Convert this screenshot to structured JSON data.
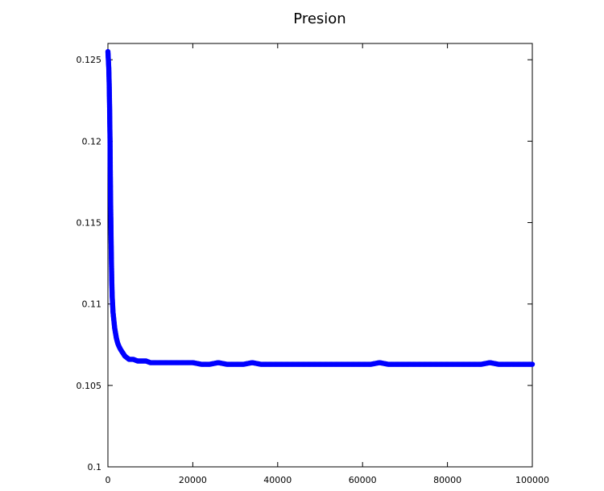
{
  "chart_data": {
    "type": "scatter",
    "title": "Presion",
    "xlabel": "",
    "ylabel": "",
    "xlim": [
      0,
      100000
    ],
    "ylim": [
      0.1,
      0.126
    ],
    "x_ticks": [
      0,
      20000,
      40000,
      60000,
      80000,
      100000
    ],
    "y_ticks": [
      0.1,
      0.105,
      0.11,
      0.115,
      0.12,
      0.125
    ],
    "x_tick_labels": [
      "0",
      "20000",
      "40000",
      "60000",
      "80000",
      "100000"
    ],
    "y_tick_labels": [
      "0.1",
      "0.105",
      "0.11",
      "0.115",
      "0.12",
      "0.125"
    ],
    "grid": false,
    "marker_color": "#0000ff",
    "series": [
      {
        "points": [
          [
            0,
            0.1255
          ],
          [
            100,
            0.125
          ],
          [
            200,
            0.1245
          ],
          [
            300,
            0.1235
          ],
          [
            400,
            0.122
          ],
          [
            500,
            0.12
          ],
          [
            600,
            0.117
          ],
          [
            700,
            0.115
          ],
          [
            800,
            0.113
          ],
          [
            900,
            0.1115
          ],
          [
            1000,
            0.1105
          ],
          [
            1200,
            0.1095
          ],
          [
            1400,
            0.109
          ],
          [
            1600,
            0.1085
          ],
          [
            1800,
            0.1082
          ],
          [
            2000,
            0.1079
          ],
          [
            2300,
            0.1076
          ],
          [
            2600,
            0.1074
          ],
          [
            3000,
            0.1072
          ],
          [
            3500,
            0.107
          ],
          [
            4000,
            0.1068
          ],
          [
            4500,
            0.1067
          ],
          [
            5000,
            0.1066
          ],
          [
            6000,
            0.1066
          ],
          [
            7000,
            0.1065
          ],
          [
            8000,
            0.1065
          ],
          [
            9000,
            0.1065
          ],
          [
            10000,
            0.1064
          ],
          [
            12000,
            0.1064
          ],
          [
            14000,
            0.1064
          ],
          [
            16000,
            0.1064
          ],
          [
            18000,
            0.1064
          ],
          [
            20000,
            0.1064
          ],
          [
            22000,
            0.1063
          ],
          [
            24000,
            0.1063
          ],
          [
            26000,
            0.1064
          ],
          [
            28000,
            0.1063
          ],
          [
            30000,
            0.1063
          ],
          [
            32000,
            0.1063
          ],
          [
            34000,
            0.1064
          ],
          [
            36000,
            0.1063
          ],
          [
            38000,
            0.1063
          ],
          [
            40000,
            0.1063
          ],
          [
            42000,
            0.1063
          ],
          [
            44000,
            0.1063
          ],
          [
            46000,
            0.1063
          ],
          [
            48000,
            0.1063
          ],
          [
            50000,
            0.1063
          ],
          [
            52000,
            0.1063
          ],
          [
            54000,
            0.1063
          ],
          [
            56000,
            0.1063
          ],
          [
            58000,
            0.1063
          ],
          [
            60000,
            0.1063
          ],
          [
            62000,
            0.1063
          ],
          [
            64000,
            0.1064
          ],
          [
            66000,
            0.1063
          ],
          [
            68000,
            0.1063
          ],
          [
            70000,
            0.1063
          ],
          [
            72000,
            0.1063
          ],
          [
            74000,
            0.1063
          ],
          [
            76000,
            0.1063
          ],
          [
            78000,
            0.1063
          ],
          [
            80000,
            0.1063
          ],
          [
            82000,
            0.1063
          ],
          [
            84000,
            0.1063
          ],
          [
            86000,
            0.1063
          ],
          [
            88000,
            0.1063
          ],
          [
            90000,
            0.1064
          ],
          [
            92000,
            0.1063
          ],
          [
            94000,
            0.1063
          ],
          [
            96000,
            0.1063
          ],
          [
            98000,
            0.1063
          ],
          [
            100000,
            0.1063
          ]
        ]
      }
    ]
  }
}
